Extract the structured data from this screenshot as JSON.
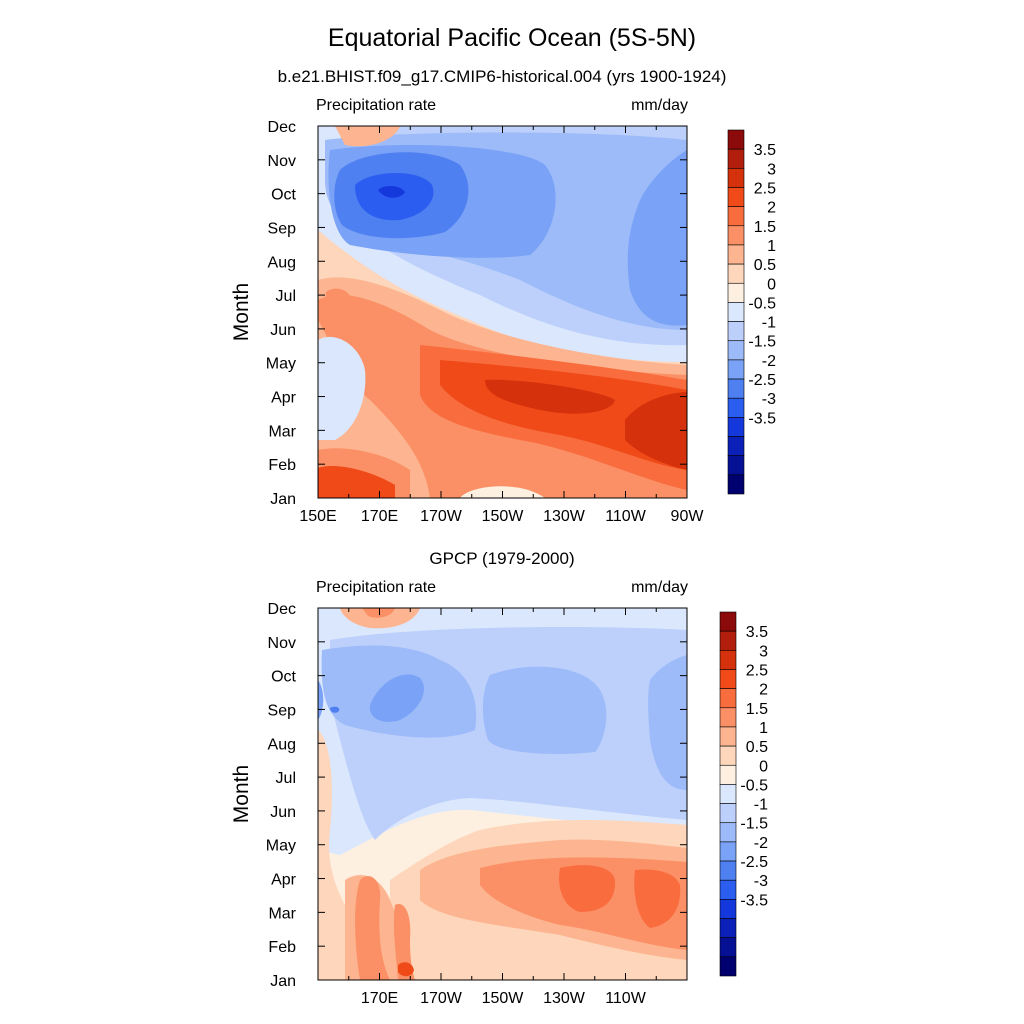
{
  "figure": {
    "title": "Equatorial Pacific Ocean (5S-5N)"
  },
  "chart_data": [
    {
      "type": "heatmap",
      "subtitle": "b.e21.BHIST.f09_g17.CMIP6-historical.004 (yrs 1900-1924)",
      "left_label": "Precipitation rate",
      "right_label": "mm/day",
      "xlabel": "",
      "ylabel": "Month",
      "x_ticks": [
        "150E",
        "170E",
        "170W",
        "150W",
        "130W",
        "110W",
        "90W"
      ],
      "y_ticks": [
        "Jan",
        "Feb",
        "Mar",
        "Apr",
        "May",
        "Jun",
        "Jul",
        "Aug",
        "Sep",
        "Oct",
        "Nov",
        "Dec"
      ],
      "xlim_deg_east": [
        150,
        270
      ],
      "ylim_month": [
        1,
        12
      ],
      "description_regions": [
        {
          "region": "Sep-Nov, 160E-170W",
          "approx_value": -3.0
        },
        {
          "region": "Apr, 150W-110W",
          "approx_value": 3.0
        },
        {
          "region": "Jan, 150E-170E",
          "approx_value": 2.5
        },
        {
          "region": "Jul-Oct, 120W-90W",
          "approx_value": -1.5
        }
      ]
    },
    {
      "type": "heatmap",
      "subtitle": "GPCP (1979-2000)",
      "left_label": "Precipitation rate",
      "right_label": "mm/day",
      "xlabel": "",
      "ylabel": "Month",
      "x_ticks": [
        "170E",
        "170W",
        "150W",
        "130W",
        "110W"
      ],
      "y_ticks": [
        "Jan",
        "Feb",
        "Mar",
        "Apr",
        "May",
        "Jun",
        "Jul",
        "Aug",
        "Sep",
        "Oct",
        "Nov",
        "Dec"
      ],
      "xlim_deg_east": [
        150,
        270
      ],
      "ylim_month": [
        1,
        12
      ],
      "description_regions": [
        {
          "region": "Sep-Oct, 170E",
          "approx_value": -2.0
        },
        {
          "region": "Mar-Apr, 130W-110W",
          "approx_value": 2.0
        },
        {
          "region": "Dec, 170E",
          "approx_value": 1.5
        },
        {
          "region": "Jun-Oct, 170W-90W",
          "approx_value": -1.0
        }
      ]
    }
  ],
  "colorbar": {
    "labels": [
      "3.5",
      "3",
      "2.5",
      "2",
      "1.5",
      "1",
      "0.5",
      "0",
      "-0.5",
      "-1",
      "-1.5",
      "-2",
      "-2.5",
      "-3",
      "-3.5"
    ],
    "colors": [
      "#8c0a0a",
      "#b21e0c",
      "#d4310c",
      "#ef4a18",
      "#f96c3e",
      "#fb9066",
      "#fcb590",
      "#fdd6bb",
      "#fdf0e0",
      "#dbe7fc",
      "#bcd0fb",
      "#9dbbf9",
      "#7aa2f6",
      "#4f80f1",
      "#2b5df0",
      "#1438dc",
      "#0a20b8",
      "#061094",
      "#00006f"
    ]
  }
}
